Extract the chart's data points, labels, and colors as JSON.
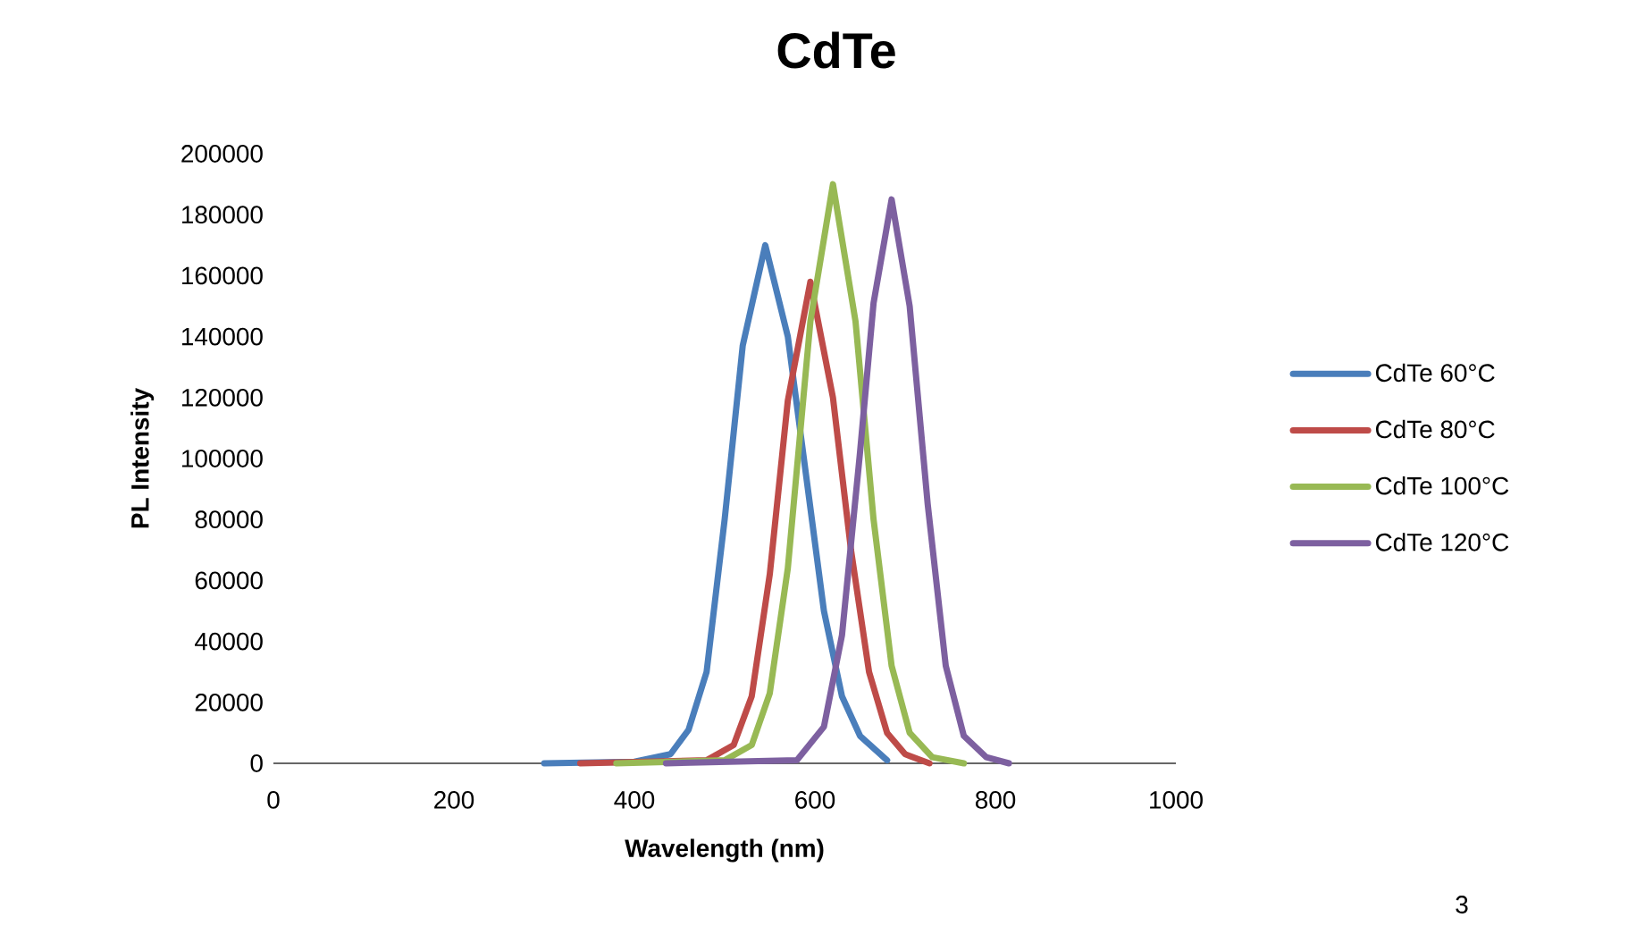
{
  "chart_data": {
    "type": "line",
    "title": "CdTe",
    "xlabel": "Wavelength (nm)",
    "ylabel": "PL Intensity",
    "xlim": [
      0,
      1000
    ],
    "xticks": [
      0,
      200,
      400,
      600,
      800,
      1000
    ],
    "ylim": [
      0,
      200000
    ],
    "yticks": [
      0,
      20000,
      40000,
      60000,
      80000,
      100000,
      120000,
      140000,
      160000,
      180000,
      200000
    ],
    "grid": false,
    "legend": "right",
    "marker": "none",
    "line_style": "solid",
    "annotations": [
      "3"
    ],
    "series": [
      {
        "name": "CdTe 60°C",
        "color": "#4a7ebb",
        "x": [
          300,
          400,
          440,
          460,
          480,
          500,
          520,
          545,
          570,
          590,
          610,
          630,
          650,
          680
        ],
        "values": [
          0,
          500,
          3000,
          11000,
          30000,
          80000,
          137000,
          170000,
          140000,
          95000,
          50000,
          22000,
          9000,
          1000
        ]
      },
      {
        "name": "CdTe 80°C",
        "color": "#be4b48",
        "x": [
          340,
          480,
          510,
          530,
          550,
          570,
          595,
          620,
          640,
          660,
          680,
          700,
          727
        ],
        "values": [
          0,
          1000,
          6000,
          22000,
          62000,
          119000,
          158000,
          120000,
          70000,
          30000,
          10000,
          3000,
          0
        ]
      },
      {
        "name": "CdTe 100°C",
        "color": "#98b954",
        "x": [
          380,
          500,
          530,
          550,
          570,
          595,
          620,
          645,
          665,
          685,
          705,
          730,
          765
        ],
        "values": [
          0,
          1000,
          6000,
          23000,
          64000,
          145000,
          190000,
          145000,
          80000,
          32000,
          10000,
          2000,
          0
        ]
      },
      {
        "name": "CdTe 120°C",
        "color": "#7d60a0",
        "x": [
          435,
          580,
          610,
          630,
          650,
          665,
          685,
          705,
          725,
          745,
          765,
          790,
          815
        ],
        "values": [
          0,
          1000,
          12000,
          42000,
          102000,
          151000,
          185000,
          150000,
          85000,
          32000,
          9000,
          2000,
          0
        ]
      }
    ]
  }
}
